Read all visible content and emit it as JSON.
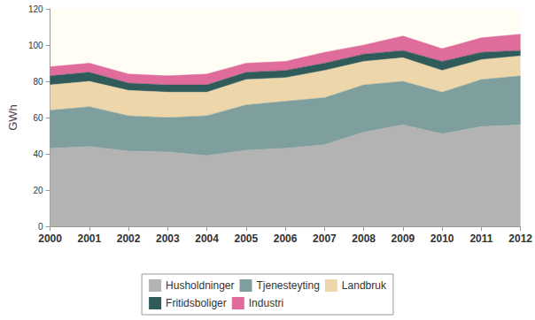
{
  "chart_data": {
    "type": "area",
    "y_label": "GWh",
    "categories": [
      "2000",
      "2001",
      "2002",
      "2003",
      "2004",
      "2005",
      "2006",
      "2007",
      "2008",
      "2009",
      "2010",
      "2011",
      "2012"
    ],
    "series": [
      {
        "name": "Husholdninger",
        "color": "#b3b3b3",
        "values": [
          43,
          44,
          41.5,
          41,
          39,
          42,
          43,
          45,
          52,
          56,
          51,
          55,
          56
        ]
      },
      {
        "name": "Tjenesteyting",
        "color": "#7f9e9e",
        "values": [
          21,
          22,
          19.5,
          19,
          22,
          25,
          26,
          26,
          26,
          24,
          23,
          26,
          27
        ]
      },
      {
        "name": "Landbruk",
        "color": "#ecd6aa",
        "values": [
          14,
          14,
          14,
          14,
          13,
          14,
          13,
          15,
          13,
          13,
          12,
          11,
          11
        ]
      },
      {
        "name": "Fritidsboliger",
        "color": "#2f5b5b",
        "values": [
          5,
          5,
          4,
          4,
          4,
          4,
          4,
          4,
          4,
          4,
          5,
          4,
          3
        ]
      },
      {
        "name": "Industri",
        "color": "#e06c9c",
        "values": [
          5,
          5,
          5,
          5,
          6,
          5,
          5,
          6,
          5,
          8,
          7,
          8,
          9
        ]
      }
    ],
    "ylim": [
      0,
      120
    ],
    "yticks": [
      0,
      20,
      40,
      60,
      80,
      100,
      120
    ],
    "stacked": true,
    "grid": false,
    "legend": "bottom"
  }
}
